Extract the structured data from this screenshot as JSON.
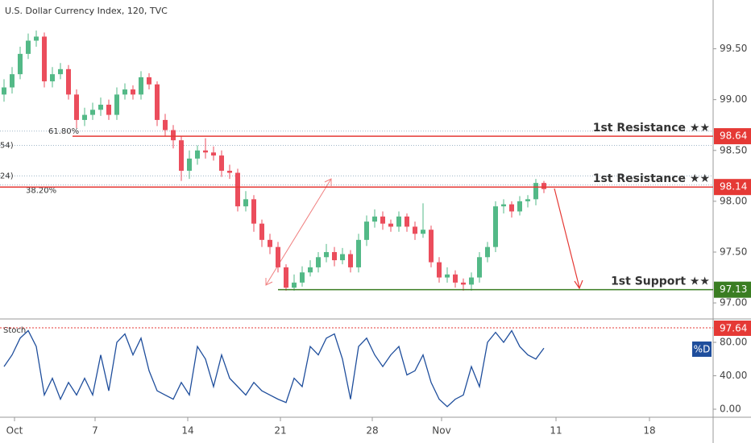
{
  "chart_data": [
    {
      "type": "candlestick",
      "title": "U.S. Dollar Currency Index, 120, TVC",
      "open": [
        99.05,
        99.12,
        99.25,
        99.45,
        99.58,
        99.62,
        99.18,
        99.25,
        99.3,
        99.05,
        98.8,
        98.85,
        98.9,
        98.95,
        98.85,
        99.05,
        99.1,
        99.05,
        99.22,
        99.15,
        98.8,
        98.7,
        98.6,
        98.3,
        98.42,
        98.5,
        98.48,
        98.45,
        98.3,
        98.28,
        97.95,
        98.02,
        97.78,
        97.62,
        97.55,
        97.35,
        97.15,
        97.2,
        97.3,
        97.35,
        97.45,
        97.5,
        97.42,
        97.48,
        97.35,
        97.62,
        97.8,
        97.85,
        97.78,
        97.75,
        97.85,
        97.75,
        97.68,
        97.72,
        97.4,
        97.25,
        97.28,
        97.2,
        97.18,
        97.25,
        97.45,
        97.55,
        97.95,
        97.97,
        97.9,
        98.0,
        98.02,
        98.18
      ],
      "high": [
        99.2,
        99.32,
        99.52,
        99.65,
        99.68,
        99.66,
        99.32,
        99.36,
        99.34,
        99.1,
        98.92,
        98.97,
        99.02,
        99.0,
        99.12,
        99.16,
        99.14,
        99.28,
        99.26,
        99.18,
        98.86,
        98.75,
        98.64,
        98.5,
        98.55,
        98.62,
        98.54,
        98.5,
        98.36,
        98.32,
        98.1,
        98.06,
        97.82,
        97.68,
        97.6,
        97.38,
        97.28,
        97.36,
        97.42,
        97.5,
        97.58,
        97.55,
        97.54,
        97.52,
        97.68,
        97.86,
        97.92,
        97.9,
        97.82,
        97.9,
        97.88,
        97.8,
        97.98,
        97.76,
        97.45,
        97.35,
        97.32,
        97.24,
        97.3,
        97.5,
        97.6,
        98.0,
        98.02,
        98.0,
        98.05,
        98.06,
        98.22,
        98.2
      ],
      "low": [
        98.98,
        99.06,
        99.2,
        99.4,
        99.52,
        99.12,
        99.12,
        99.2,
        99.0,
        98.72,
        98.74,
        98.8,
        98.84,
        98.8,
        98.8,
        99.0,
        99.0,
        99.0,
        99.1,
        98.74,
        98.64,
        98.52,
        98.2,
        98.22,
        98.36,
        98.42,
        98.4,
        98.24,
        98.22,
        97.9,
        97.9,
        97.7,
        97.55,
        97.48,
        97.3,
        97.12,
        97.12,
        97.16,
        97.26,
        97.3,
        97.4,
        97.36,
        97.38,
        97.3,
        97.3,
        97.56,
        97.74,
        97.72,
        97.7,
        97.7,
        97.7,
        97.62,
        97.64,
        97.35,
        97.2,
        97.2,
        97.15,
        97.12,
        97.12,
        97.2,
        97.4,
        97.5,
        97.88,
        97.84,
        97.86,
        97.94,
        97.96,
        98.08
      ],
      "close": [
        99.12,
        99.25,
        99.45,
        99.58,
        99.62,
        99.18,
        99.25,
        99.3,
        99.05,
        98.8,
        98.85,
        98.9,
        98.95,
        98.85,
        99.05,
        99.1,
        99.05,
        99.22,
        99.15,
        98.8,
        98.7,
        98.6,
        98.3,
        98.42,
        98.5,
        98.48,
        98.45,
        98.3,
        98.28,
        97.95,
        98.02,
        97.78,
        97.62,
        97.55,
        97.35,
        97.15,
        97.2,
        97.3,
        97.35,
        97.45,
        97.5,
        97.42,
        97.48,
        97.35,
        97.62,
        97.8,
        97.85,
        97.78,
        97.75,
        97.85,
        97.75,
        97.68,
        97.72,
        97.4,
        97.25,
        97.28,
        97.2,
        97.18,
        97.25,
        97.45,
        97.55,
        97.95,
        97.97,
        97.9,
        98.0,
        98.02,
        98.18,
        98.12
      ],
      "up_color": "#53b987",
      "down_color": "#eb4d5c",
      "xlim": [
        0,
        88.5
      ],
      "xticks": [
        {
          "value": 1.8,
          "label": "Oct"
        },
        {
          "value": 11.8,
          "label": "7"
        },
        {
          "value": 23.3,
          "label": "14"
        },
        {
          "value": 34.8,
          "label": "21"
        },
        {
          "value": 46.2,
          "label": "28"
        },
        {
          "value": 54.8,
          "label": "Nov"
        },
        {
          "value": 69,
          "label": "11"
        },
        {
          "value": 80.6,
          "label": "18"
        }
      ],
      "ylim": [
        96.85,
        99.98
      ],
      "yticks": [
        {
          "value": 99.5,
          "label": "99.50"
        },
        {
          "value": 99,
          "label": "99.00"
        },
        {
          "value": 98.5,
          "label": "98.50"
        },
        {
          "value": 98,
          "label": "98.00"
        },
        {
          "value": 97.5,
          "label": "97.50"
        },
        {
          "value": 97,
          "label": "97.00"
        }
      ],
      "levels": [
        {
          "label": "1st Resistance ★★",
          "value": 98.64,
          "color": "#e53935"
        },
        {
          "label": "1st Resistance ★★",
          "value": 98.14,
          "color": "#e53935"
        },
        {
          "label": "1st Support ★★",
          "value": 97.13,
          "color": "#3a7d22"
        }
      ],
      "fib_levels": [
        {
          "label": "61.80%",
          "value": 98.69
        },
        {
          "label": "54)",
          "value": 98.55
        },
        {
          "label": "24)",
          "value": 98.25
        },
        {
          "label": "38.20%",
          "value": 98.16
        }
      ]
    },
    {
      "type": "line",
      "name": "Stoch",
      "series_label": "%D",
      "color": "#1f4e9c",
      "values": [
        51,
        65,
        85,
        94,
        75,
        17,
        37,
        12,
        32,
        17,
        37,
        17,
        65,
        22,
        80,
        90,
        65,
        85,
        46,
        22,
        17,
        12,
        32,
        17,
        75,
        60,
        27,
        65,
        37,
        27,
        17,
        32,
        22,
        17,
        12,
        8,
        37,
        27,
        75,
        65,
        85,
        90,
        60,
        12,
        75,
        85,
        65,
        51,
        65,
        75,
        41,
        46,
        65,
        32,
        12,
        3,
        12,
        17,
        51,
        27,
        80,
        92,
        80,
        94,
        75,
        65,
        60,
        73
      ],
      "ylim": [
        -9.6,
        107
      ],
      "yticks": [
        {
          "value": 80,
          "label": "80.00"
        },
        {
          "value": 40,
          "label": "40.00"
        },
        {
          "value": 0,
          "label": "0.00"
        }
      ],
      "marker_label": "97.64"
    }
  ]
}
